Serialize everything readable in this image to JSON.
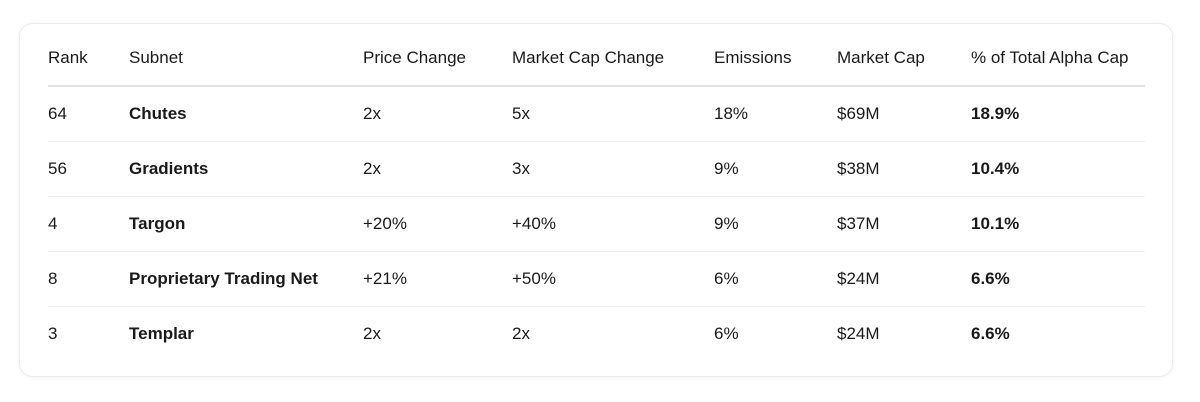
{
  "table": {
    "columns": [
      "Rank",
      "Subnet",
      "Price Change",
      "Market Cap Change",
      "Emissions",
      "Market Cap",
      "% of Total Alpha Cap"
    ],
    "rows": [
      [
        "64",
        "Chutes",
        "2x",
        "5x",
        "18%",
        "$69M",
        "18.9%"
      ],
      [
        "56",
        "Gradients",
        "2x",
        "3x",
        "9%",
        "$38M",
        "10.4%"
      ],
      [
        "4",
        "Targon",
        "+20%",
        "+40%",
        "9%",
        "$37M",
        "10.1%"
      ],
      [
        "8",
        "Proprietary Trading Net",
        "+21%",
        "+50%",
        "6%",
        "$24M",
        "6.6%"
      ],
      [
        "3",
        "Templar",
        "2x",
        "2x",
        "6%",
        "$24M",
        "6.6%"
      ]
    ]
  }
}
